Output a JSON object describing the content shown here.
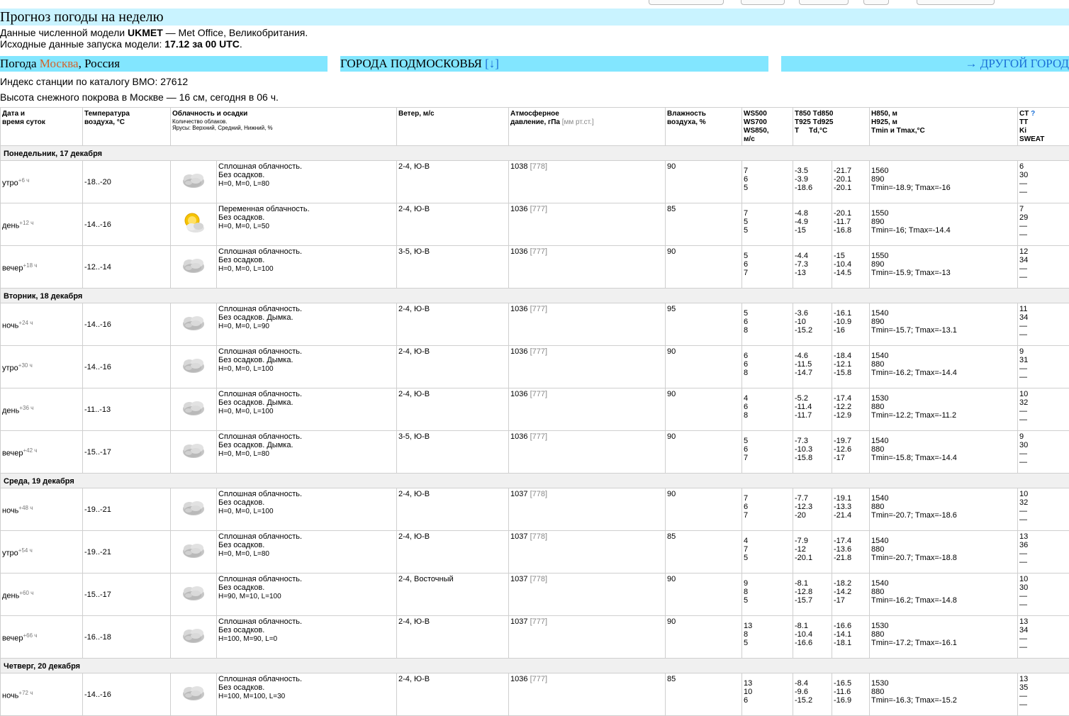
{
  "page": {
    "title": "Прогноз погоды на неделю",
    "model_line_prefix": "Данные численной модели ",
    "model_name": "UKMET",
    "model_line_suffix": " — Met Office, Великобритания.",
    "run_line_prefix": "Исходные данные запуска модели: ",
    "run_value": "17.12 за 00 UTC",
    "run_line_suffix": "."
  },
  "city_bar": {
    "weather_prefix": "Погода ",
    "city": "Москва",
    "country": ", Россия",
    "suburbs_label": "ГОРОДА ПОДМОСКОВЬЯ",
    "suburbs_link": "[↓]",
    "other_city": "→ ДРУГОЙ ГОРОД"
  },
  "station_index": "Индекс станции по каталогу ВМО: 27612",
  "snow_depth": "Высота снежного покрова в Москве — 16 см, сегодня в 06 ч.",
  "headers": {
    "date_l1": "Дата и",
    "date_l2": "время суток",
    "temp_l1": "Температура",
    "temp_l2": "воздуха, °C",
    "cloud_l1": "Облачность и осадки",
    "cloud_l2": "Количество облаков.",
    "cloud_l3": "Ярусы: Верхний, Средний, Нижний, %",
    "wind": "Ветер, м/с",
    "press_l1": "Атмосферное",
    "press_l2": "давление, гПа",
    "press_unit": "[мм рт.ст.]",
    "hum_l1": "Влажность",
    "hum_l2": "воздуха, %",
    "ws_l1": "WS500",
    "ws_l2": "WS700",
    "ws_l3": "WS850,",
    "ws_l4": "м/с",
    "t_l1": "T850 Td850",
    "t_l2": "T925 Td925",
    "t_l3": "T     Td,°C",
    "h_l1": "H850, м",
    "h_l2": "H925, м",
    "h_l3": "Tmin и Tmax,°C",
    "ct_l1": "CT",
    "ct_q": "?",
    "ct_l2": "TT",
    "ct_l3": "Ki",
    "ct_l4": "SWEAT"
  },
  "days": [
    {
      "name": "Понедельник, 17 декабря",
      "rows": [
        {
          "time": "утро",
          "offset": "+6 ч",
          "temp": "-18..-20",
          "icon": "overcast-cloud-icon",
          "desc1": "Сплошная облачность.",
          "desc2": "Без осадков.",
          "layers": "H=0, M=0, L=80",
          "wind": "2-4, Ю-В",
          "press": "1038",
          "mm": "[778]",
          "hum": "90",
          "ws": [
            "7",
            "6",
            "5"
          ],
          "t": [
            "-3.5",
            "-3.9",
            "-18.6"
          ],
          "td": [
            "-21.7",
            "-20.1",
            "-20.1"
          ],
          "h": [
            "1560",
            "890",
            "Tmin=-18.9; Tmax=-16"
          ],
          "ct": [
            "6",
            "30",
            "—",
            "—"
          ]
        },
        {
          "time": "день",
          "offset": "+12 ч",
          "temp": "-14..-16",
          "icon": "partly-cloudy-icon",
          "desc1": "Переменная облачность.",
          "desc2": "Без осадков.",
          "layers": "H=0, M=0, L=50",
          "wind": "2-4, Ю-В",
          "press": "1036",
          "mm": "[777]",
          "hum": "85",
          "ws": [
            "7",
            "5",
            "5"
          ],
          "t": [
            "-4.8",
            "-4.9",
            "-15"
          ],
          "td": [
            "-20.1",
            "-11.7",
            "-16.8"
          ],
          "h": [
            "1550",
            "890",
            "Tmin=-16; Tmax=-14.4"
          ],
          "ct": [
            "7",
            "29",
            "—",
            "—"
          ]
        },
        {
          "time": "вечер",
          "offset": "+18 ч",
          "temp": "-12..-14",
          "icon": "overcast-cloud-icon",
          "desc1": "Сплошная облачность.",
          "desc2": "Без осадков.",
          "layers": "H=0, M=0, L=100",
          "wind": "3-5, Ю-В",
          "press": "1036",
          "mm": "[777]",
          "hum": "90",
          "ws": [
            "5",
            "6",
            "7"
          ],
          "t": [
            "-4.4",
            "-7.3",
            "-13"
          ],
          "td": [
            "-15",
            "-10.4",
            "-14.5"
          ],
          "h": [
            "1550",
            "890",
            "Tmin=-15.9; Tmax=-13"
          ],
          "ct": [
            "12",
            "34",
            "—",
            "—"
          ]
        }
      ]
    },
    {
      "name": "Вторник, 18 декабря",
      "rows": [
        {
          "time": "ночь",
          "offset": "+24 ч",
          "temp": "-14..-16",
          "icon": "overcast-cloud-icon",
          "desc1": "Сплошная облачность.",
          "desc2": "Без осадков. Дымка.",
          "layers": "H=0, M=0, L=90",
          "wind": "2-4, Ю-В",
          "press": "1036",
          "mm": "[777]",
          "hum": "95",
          "ws": [
            "5",
            "6",
            "8"
          ],
          "t": [
            "-3.6",
            "-10",
            "-15.2"
          ],
          "td": [
            "-16.1",
            "-10.9",
            "-16"
          ],
          "h": [
            "1540",
            "890",
            "Tmin=-15.7; Tmax=-13.1"
          ],
          "ct": [
            "11",
            "34",
            "—",
            "—"
          ]
        },
        {
          "time": "утро",
          "offset": "+30 ч",
          "temp": "-14..-16",
          "icon": "overcast-cloud-icon",
          "desc1": "Сплошная облачность.",
          "desc2": "Без осадков. Дымка.",
          "layers": "H=0, M=0, L=100",
          "wind": "2-4, Ю-В",
          "press": "1036",
          "mm": "[777]",
          "hum": "90",
          "ws": [
            "6",
            "6",
            "8"
          ],
          "t": [
            "-4.6",
            "-11.5",
            "-14.7"
          ],
          "td": [
            "-18.4",
            "-12.1",
            "-15.8"
          ],
          "h": [
            "1540",
            "880",
            "Tmin=-16.2; Tmax=-14.4"
          ],
          "ct": [
            "9",
            "31",
            "—",
            "—"
          ]
        },
        {
          "time": "день",
          "offset": "+36 ч",
          "temp": "-11..-13",
          "icon": "overcast-cloud-icon",
          "desc1": "Сплошная облачность.",
          "desc2": "Без осадков. Дымка.",
          "layers": "H=0, M=0, L=100",
          "wind": "2-4, Ю-В",
          "press": "1036",
          "mm": "[777]",
          "hum": "90",
          "ws": [
            "4",
            "6",
            "8"
          ],
          "t": [
            "-5.2",
            "-11.4",
            "-11.7"
          ],
          "td": [
            "-17.4",
            "-12.2",
            "-12.9"
          ],
          "h": [
            "1530",
            "880",
            "Tmin=-12.2; Tmax=-11.2"
          ],
          "ct": [
            "10",
            "32",
            "—",
            "—"
          ]
        },
        {
          "time": "вечер",
          "offset": "+42 ч",
          "temp": "-15..-17",
          "icon": "overcast-cloud-icon",
          "desc1": "Сплошная облачность.",
          "desc2": "Без осадков. Дымка.",
          "layers": "H=0, M=0, L=80",
          "wind": "3-5, Ю-В",
          "press": "1036",
          "mm": "[777]",
          "hum": "90",
          "ws": [
            "5",
            "6",
            "7"
          ],
          "t": [
            "-7.3",
            "-10.3",
            "-15.8"
          ],
          "td": [
            "-19.7",
            "-12.6",
            "-17"
          ],
          "h": [
            "1540",
            "880",
            "Tmin=-15.8; Tmax=-14.4"
          ],
          "ct": [
            "9",
            "30",
            "—",
            "—"
          ]
        }
      ]
    },
    {
      "name": "Среда, 19 декабря",
      "rows": [
        {
          "time": "ночь",
          "offset": "+48 ч",
          "temp": "-19..-21",
          "icon": "overcast-cloud-icon",
          "desc1": "Сплошная облачность.",
          "desc2": "Без осадков.",
          "layers": "H=0, M=0, L=100",
          "wind": "2-4, Ю-В",
          "press": "1037",
          "mm": "[778]",
          "hum": "90",
          "ws": [
            "7",
            "6",
            "7"
          ],
          "t": [
            "-7.7",
            "-12.3",
            "-20"
          ],
          "td": [
            "-19.1",
            "-13.3",
            "-21.4"
          ],
          "h": [
            "1540",
            "880",
            "Tmin=-20.7; Tmax=-18.6"
          ],
          "ct": [
            "10",
            "32",
            "—",
            "—"
          ]
        },
        {
          "time": "утро",
          "offset": "+54 ч",
          "temp": "-19..-21",
          "icon": "overcast-cloud-icon",
          "desc1": "Сплошная облачность.",
          "desc2": "Без осадков.",
          "layers": "H=0, M=0, L=80",
          "wind": "2-4, Ю-В",
          "press": "1037",
          "mm": "[778]",
          "hum": "85",
          "ws": [
            "4",
            "7",
            "5"
          ],
          "t": [
            "-7.9",
            "-12",
            "-20.1"
          ],
          "td": [
            "-17.4",
            "-13.6",
            "-21.8"
          ],
          "h": [
            "1540",
            "880",
            "Tmin=-20.7; Tmax=-18.8"
          ],
          "ct": [
            "13",
            "36",
            "—",
            "—"
          ]
        },
        {
          "time": "день",
          "offset": "+60 ч",
          "temp": "-15..-17",
          "icon": "overcast-cloud-icon",
          "desc1": "Сплошная облачность.",
          "desc2": "Без осадков.",
          "layers": "H=90, M=10, L=100",
          "wind": "2-4, Восточный",
          "press": "1037",
          "mm": "[778]",
          "hum": "90",
          "ws": [
            "9",
            "8",
            "5"
          ],
          "t": [
            "-8.1",
            "-12.8",
            "-15.7"
          ],
          "td": [
            "-18.2",
            "-14.2",
            "-17"
          ],
          "h": [
            "1540",
            "880",
            "Tmin=-16.2; Tmax=-14.8"
          ],
          "ct": [
            "10",
            "30",
            "—",
            "—"
          ]
        },
        {
          "time": "вечер",
          "offset": "+66 ч",
          "temp": "-16..-18",
          "icon": "overcast-cloud-icon",
          "desc1": "Сплошная облачность.",
          "desc2": "Без осадков.",
          "layers": "H=100, M=90, L=0",
          "wind": "2-4, Ю-В",
          "press": "1037",
          "mm": "[777]",
          "hum": "90",
          "ws": [
            "13",
            "8",
            "5"
          ],
          "t": [
            "-8.1",
            "-10.4",
            "-16.6"
          ],
          "td": [
            "-16.6",
            "-14.1",
            "-18.1"
          ],
          "h": [
            "1530",
            "880",
            "Tmin=-17.2; Tmax=-16.1"
          ],
          "ct": [
            "13",
            "34",
            "—",
            "—"
          ]
        }
      ]
    },
    {
      "name": "Четверг, 20 декабря",
      "rows": [
        {
          "time": "ночь",
          "offset": "+72 ч",
          "temp": "-14..-16",
          "icon": "overcast-cloud-icon",
          "desc1": "Сплошная облачность.",
          "desc2": "Без осадков.",
          "layers": "H=100, M=100, L=30",
          "wind": "2-4, Ю-В",
          "press": "1036",
          "mm": "[777]",
          "hum": "85",
          "ws": [
            "13",
            "10",
            "6"
          ],
          "t": [
            "-8.4",
            "-9.6",
            "-15.2"
          ],
          "td": [
            "-16.5",
            "-11.6",
            "-16.9"
          ],
          "h": [
            "1530",
            "880",
            "Tmin=-16.3; Tmax=-15.2"
          ],
          "ct": [
            "13",
            "35",
            "—",
            "—"
          ]
        }
      ]
    }
  ]
}
